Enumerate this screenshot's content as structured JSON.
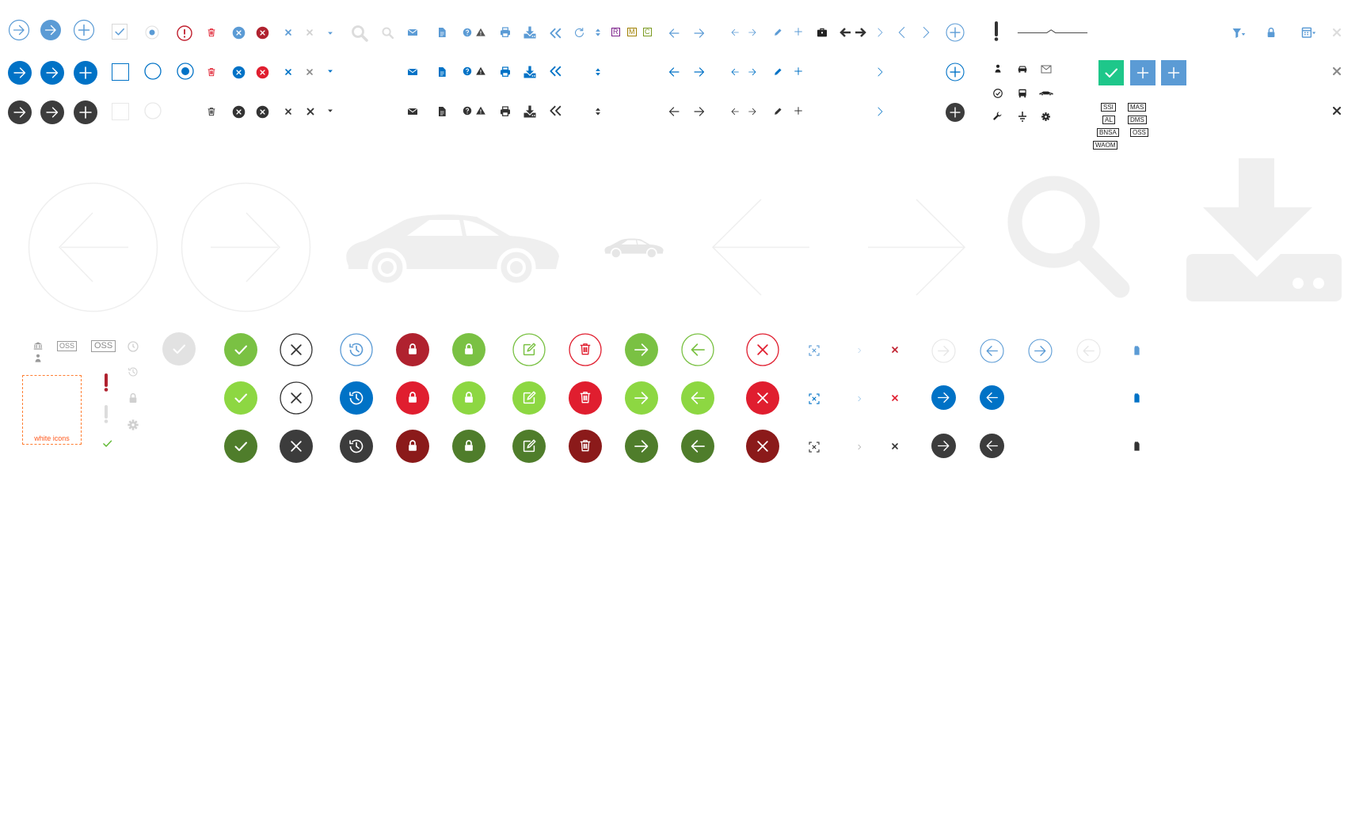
{
  "colors": {
    "blue": "#0072c6",
    "light_blue": "#5b9bd5",
    "dark": "#3c3c3c",
    "red": "#e01e2f",
    "dark_red": "#8b1a1a",
    "crimson": "#b0222f",
    "green": "#7ac143",
    "lime": "#8dd742",
    "dark_green": "#4f7d2b",
    "teal": "#1ec78a",
    "faint": "#efefef",
    "orange": "#ff7f33"
  },
  "letter_badges": [
    "R",
    "M",
    "C"
  ],
  "tags": {
    "oss": "OSS",
    "ssi": "SSI",
    "mas": "MAS",
    "al": "AL",
    "dms": "DMS",
    "bnsa": "BNSA",
    "waom": "WAOM"
  },
  "white_icons_label": "white icons",
  "icons": [
    "arrow-right-circle-icon",
    "plus-circle-icon",
    "checkbox-checked-icon",
    "radio-icon",
    "alert-circle-icon",
    "trash-icon",
    "close-circle-icon",
    "close-icon",
    "caret-down-icon",
    "search-icon",
    "envelope-icon",
    "document-icon",
    "help-icon",
    "warning-icon",
    "print-icon",
    "download-icon",
    "double-chevron-left-icon",
    "refresh-icon",
    "sort-icon",
    "arrow-left-icon",
    "arrow-right-icon",
    "pencil-icon",
    "plus-icon",
    "briefcase-icon",
    "chevron-left-icon",
    "chevron-right-icon",
    "exclamation-icon",
    "slider-line-icon",
    "filter-icon",
    "lock-icon",
    "calendar-icon",
    "people-icon",
    "car-icon",
    "bus-icon",
    "wrench-icon",
    "gear-icon",
    "check-icon",
    "history-icon",
    "edit-icon",
    "fit-screen-icon",
    "building-icon",
    "pin-icon",
    "clock-icon"
  ]
}
